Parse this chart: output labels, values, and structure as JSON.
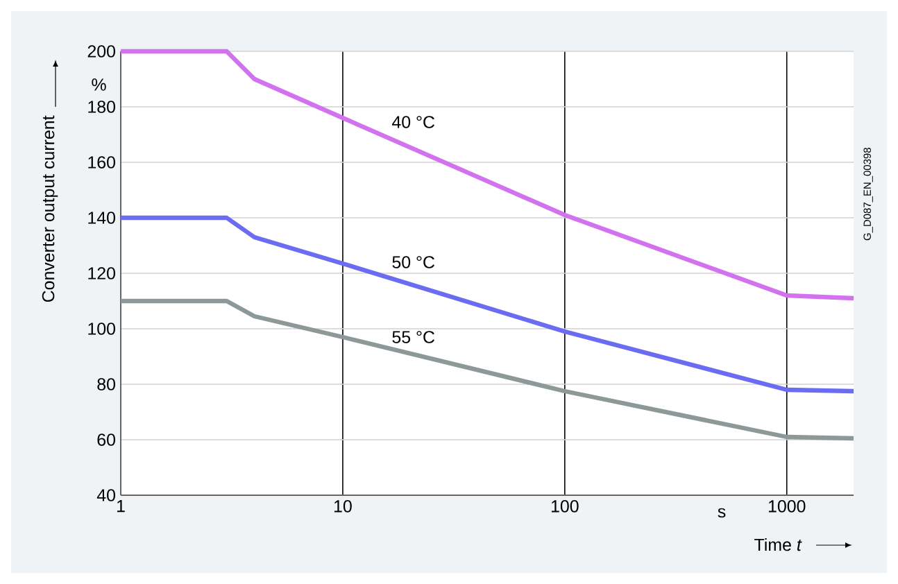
{
  "chart_data": {
    "type": "line",
    "xlabel": "Time *t*",
    "ylabel": "Converter output current",
    "log": "x",
    "grid": true,
    "xlim": [
      1,
      2000
    ],
    "xticks": [
      1,
      10,
      100,
      1000
    ],
    "ylim": [
      40,
      200
    ],
    "yticks": [
      40,
      60,
      80,
      100,
      120,
      140,
      160,
      180,
      200
    ],
    "x": [
      1,
      3,
      4,
      10,
      100,
      1000,
      2000
    ],
    "series": [
      {
        "color": "#d272ee",
        "values": [
          200,
          200,
          190,
          176,
          141,
          112,
          111
        ]
      },
      {
        "color": "#6b6cf2",
        "values": [
          140,
          140,
          133,
          123.5,
          99,
          78,
          77.5
        ]
      },
      {
        "color": "#8d9999",
        "values": [
          110,
          110,
          104.5,
          97,
          77.5,
          61,
          60.5
        ]
      }
    ],
    "annotations": [
      "40 °C",
      "50 °C",
      "55 °C",
      "%",
      "s",
      "G_D087_EN_00398"
    ]
  }
}
